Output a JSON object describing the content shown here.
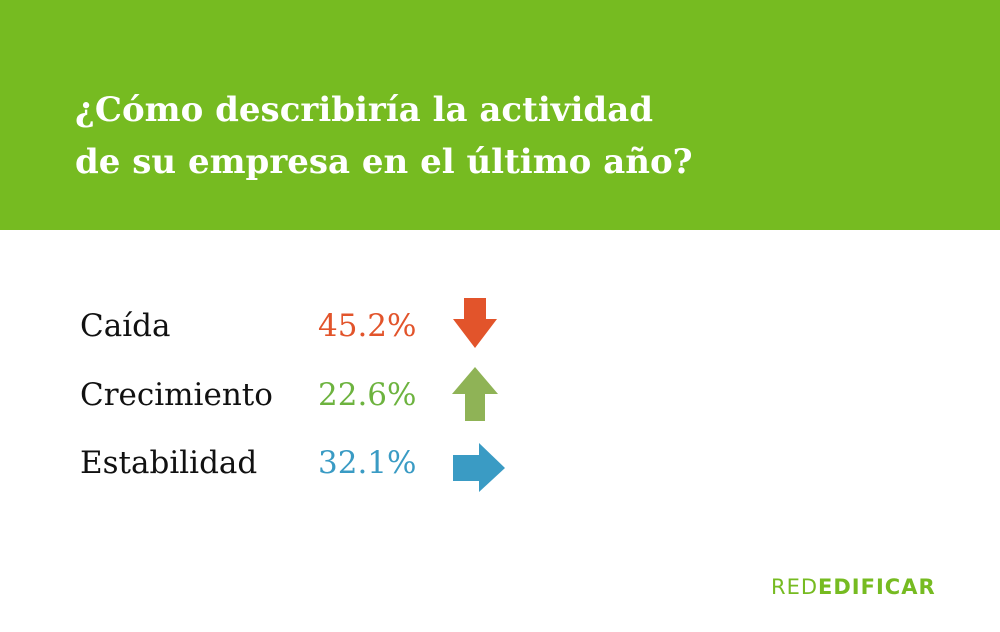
{
  "header": {
    "title_line1": "¿Cómo describiría la actividad",
    "title_line2": "de su empresa en el último año?",
    "background_color": "#76bb21"
  },
  "results": [
    {
      "label": "Caída",
      "value": "45.2%",
      "color": "#e2542b",
      "icon": "arrow-down-icon"
    },
    {
      "label": "Crecimiento",
      "value": "22.6%",
      "color": "#6db33f",
      "icon": "arrow-up-icon"
    },
    {
      "label": "Estabilidad",
      "value": "32.1%",
      "color": "#3a9bc4",
      "icon": "arrow-right-icon"
    }
  ],
  "logo": {
    "part1": "RED",
    "part2": "EDIFICAR"
  }
}
